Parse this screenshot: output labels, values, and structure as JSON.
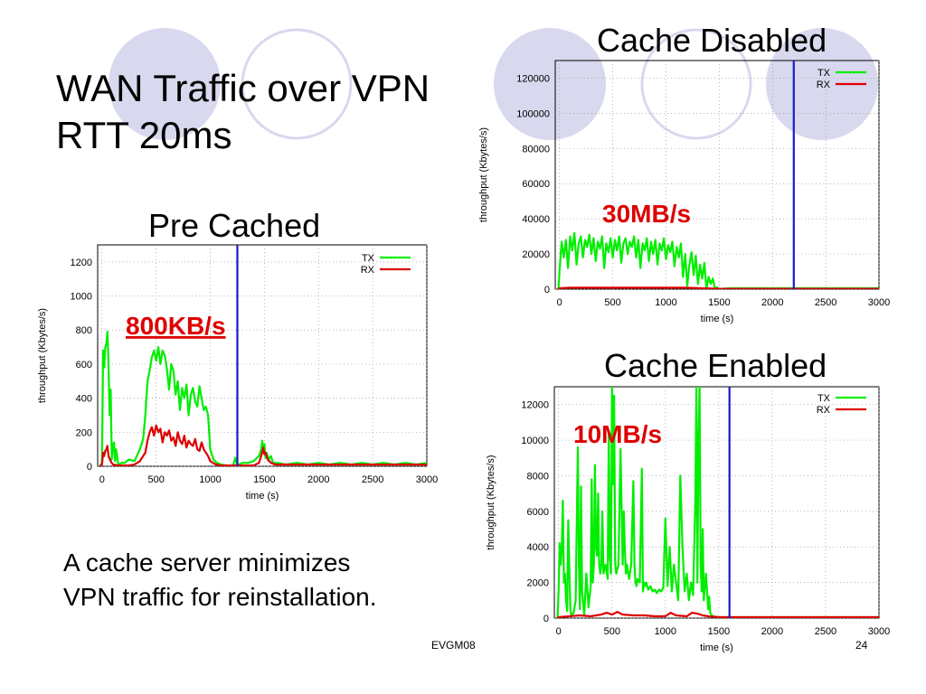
{
  "slide": {
    "title_line1": "WAN Traffic over VPN",
    "title_line2": "RTT 20ms",
    "body_line1": "A cache server minimizes",
    "body_line2": "VPN traffic for reinstallation.",
    "footer_left": "EVGM08",
    "page_number": "24"
  },
  "colors": {
    "tx": "#00ee00",
    "rx": "#dd0000",
    "vline": "#1a1acc",
    "annotation": "#dd0000",
    "circle_fill": "#d8d8ee",
    "circle_stroke": "#d8d8ee"
  },
  "chart_data": [
    {
      "id": "precached",
      "type": "line",
      "heading": "Pre Cached",
      "annotation": "800KB/s",
      "annotation_underline": true,
      "xlabel": "time (s)",
      "ylabel": "throughput (Kbytes/s)",
      "xlim": [
        -40,
        3000
      ],
      "ylim": [
        0,
        1300
      ],
      "xticks": [
        0,
        500,
        1000,
        1500,
        2000,
        2500,
        3000
      ],
      "yticks": [
        0,
        200,
        400,
        600,
        800,
        1000,
        1200
      ],
      "legend_position": "top-right",
      "vline_x": 1250,
      "series": [
        {
          "name": "TX",
          "x": [
            -20,
            0,
            10,
            20,
            30,
            40,
            50,
            60,
            70,
            80,
            90,
            100,
            110,
            120,
            130,
            150,
            180,
            210,
            250,
            300,
            350,
            380,
            400,
            420,
            440,
            460,
            480,
            500,
            520,
            540,
            560,
            580,
            600,
            620,
            640,
            660,
            680,
            700,
            720,
            740,
            760,
            780,
            800,
            820,
            840,
            860,
            880,
            900,
            920,
            940,
            960,
            980,
            1000,
            1030,
            1060,
            1100,
            1150,
            1200,
            1210,
            1230,
            1250,
            1260,
            1300,
            1350,
            1400,
            1450,
            1470,
            1480,
            1490,
            1500,
            1510,
            1520,
            1540,
            1560,
            1580,
            1600,
            1620,
            1700,
            1800,
            1900,
            2000,
            2100,
            2200,
            2300,
            2400,
            2500,
            2600,
            2700,
            2800,
            2900,
            3000
          ],
          "y": [
            0,
            20,
            680,
            580,
            700,
            720,
            790,
            600,
            300,
            450,
            40,
            120,
            140,
            30,
            100,
            10,
            20,
            20,
            40,
            30,
            100,
            160,
            300,
            500,
            560,
            640,
            680,
            620,
            700,
            600,
            680,
            650,
            570,
            450,
            600,
            560,
            420,
            500,
            330,
            460,
            400,
            480,
            300,
            420,
            460,
            380,
            350,
            470,
            400,
            330,
            350,
            300,
            100,
            40,
            20,
            10,
            5,
            5,
            5,
            50,
            5,
            10,
            20,
            20,
            30,
            60,
            100,
            150,
            80,
            130,
            50,
            80,
            40,
            60,
            20,
            20,
            20,
            10,
            20,
            10,
            20,
            10,
            20,
            10,
            20,
            10,
            20,
            10,
            20,
            10,
            20
          ]
        },
        {
          "name": "RX",
          "x": [
            -20,
            0,
            10,
            20,
            30,
            40,
            50,
            60,
            80,
            100,
            150,
            200,
            250,
            300,
            350,
            400,
            420,
            440,
            460,
            480,
            500,
            520,
            540,
            560,
            580,
            600,
            620,
            640,
            660,
            680,
            700,
            720,
            740,
            760,
            780,
            800,
            820,
            840,
            860,
            880,
            900,
            920,
            940,
            960,
            980,
            1000,
            1050,
            1100,
            1150,
            1200,
            1250,
            1300,
            1350,
            1400,
            1450,
            1470,
            1490,
            1500,
            1510,
            1530,
            1560,
            1600,
            1700,
            1800,
            1900,
            2000,
            2200,
            2400,
            2600,
            2800,
            3000
          ],
          "y": [
            0,
            10,
            80,
            60,
            90,
            100,
            120,
            60,
            30,
            10,
            5,
            5,
            5,
            10,
            30,
            80,
            150,
            200,
            230,
            180,
            240,
            200,
            220,
            140,
            200,
            180,
            210,
            150,
            170,
            120,
            200,
            150,
            130,
            180,
            110,
            150,
            130,
            120,
            160,
            100,
            90,
            140,
            100,
            80,
            60,
            30,
            10,
            5,
            5,
            5,
            5,
            5,
            5,
            5,
            20,
            60,
            110,
            70,
            80,
            40,
            20,
            10,
            10,
            10,
            10,
            10,
            10,
            10,
            10,
            10,
            10
          ]
        }
      ]
    },
    {
      "id": "disabled",
      "type": "line",
      "heading": "Cache Disabled",
      "annotation": "30MB/s",
      "annotation_underline": false,
      "xlabel": "time (s)",
      "ylabel": "throughput (Kbytes/s)",
      "xlim": [
        -40,
        3000
      ],
      "ylim": [
        0,
        130000
      ],
      "xticks": [
        0,
        500,
        1000,
        1500,
        2000,
        2500,
        3000
      ],
      "yticks": [
        0,
        20000,
        40000,
        60000,
        80000,
        100000,
        120000
      ],
      "legend_position": "top-right",
      "vline_x": 2200,
      "series": [
        {
          "name": "TX",
          "x": [
            -10,
            0,
            20,
            40,
            60,
            80,
            100,
            120,
            140,
            160,
            180,
            200,
            220,
            240,
            260,
            280,
            300,
            320,
            340,
            360,
            380,
            400,
            420,
            440,
            460,
            480,
            500,
            520,
            540,
            560,
            580,
            600,
            620,
            640,
            660,
            680,
            700,
            720,
            740,
            760,
            780,
            800,
            820,
            840,
            860,
            880,
            900,
            920,
            940,
            960,
            980,
            1000,
            1020,
            1040,
            1060,
            1080,
            1100,
            1120,
            1140,
            1160,
            1180,
            1200,
            1220,
            1240,
            1260,
            1280,
            1300,
            1320,
            1340,
            1360,
            1380,
            1400,
            1420,
            1440,
            1460,
            1480,
            1500,
            1550,
            1600,
            1700,
            1800,
            1900,
            2000,
            2100,
            2200,
            2300,
            2500,
            2700,
            3000
          ],
          "y": [
            0,
            10000,
            27000,
            18000,
            28000,
            12000,
            30000,
            22000,
            32000,
            14000,
            26000,
            30000,
            18000,
            28000,
            24000,
            31000,
            20000,
            29000,
            16000,
            27000,
            23000,
            30000,
            12000,
            26000,
            21000,
            29000,
            18000,
            28000,
            22000,
            30000,
            15000,
            26000,
            29000,
            20000,
            27000,
            24000,
            30000,
            18000,
            28000,
            12000,
            26000,
            22000,
            29000,
            16000,
            27000,
            20000,
            28000,
            14000,
            26000,
            22000,
            29000,
            17000,
            25000,
            21000,
            27000,
            13000,
            24000,
            18000,
            26000,
            7000,
            20000,
            2000,
            14000,
            21000,
            8000,
            19000,
            3000,
            14000,
            6000,
            15000,
            0,
            7000,
            3000,
            6000,
            500,
            1000,
            0,
            300,
            500,
            500,
            500,
            500,
            500,
            500,
            500,
            500,
            500,
            500,
            500
          ]
        },
        {
          "name": "RX",
          "x": [
            -10,
            0,
            100,
            200,
            400,
            600,
            800,
            1000,
            1200,
            1300,
            1400,
            1500,
            1600,
            2000,
            2500,
            3000
          ],
          "y": [
            0,
            500,
            800,
            800,
            800,
            800,
            800,
            800,
            800,
            600,
            400,
            200,
            200,
            200,
            200,
            200
          ]
        }
      ]
    },
    {
      "id": "enabled",
      "type": "line",
      "heading": "Cache Enabled",
      "annotation": "10MB/s",
      "annotation_underline": false,
      "xlabel": "time (s)",
      "ylabel": "throughput (Kbytes/s)",
      "xlim": [
        -40,
        3000
      ],
      "ylim": [
        0,
        13000
      ],
      "xticks": [
        0,
        500,
        1000,
        1500,
        2000,
        2500,
        3000
      ],
      "yticks": [
        0,
        2000,
        4000,
        6000,
        8000,
        10000,
        12000
      ],
      "legend_position": "top-right",
      "vline_x": 1600,
      "series": [
        {
          "name": "TX",
          "x": [
            -10,
            0,
            10,
            20,
            30,
            40,
            50,
            60,
            70,
            80,
            90,
            100,
            110,
            120,
            140,
            160,
            180,
            190,
            200,
            210,
            220,
            240,
            260,
            280,
            300,
            310,
            320,
            330,
            340,
            350,
            360,
            370,
            380,
            390,
            400,
            410,
            420,
            440,
            460,
            470,
            480,
            490,
            500,
            510,
            520,
            530,
            540,
            560,
            580,
            600,
            610,
            620,
            630,
            640,
            660,
            680,
            700,
            710,
            720,
            730,
            740,
            760,
            780,
            790,
            800,
            810,
            820,
            840,
            860,
            880,
            900,
            920,
            940,
            960,
            980,
            1000,
            1020,
            1040,
            1060,
            1080,
            1100,
            1120,
            1140,
            1160,
            1180,
            1200,
            1220,
            1240,
            1260,
            1280,
            1290,
            1300,
            1310,
            1320,
            1330,
            1340,
            1350,
            1360,
            1380,
            1400,
            1410,
            1420,
            1430,
            1440,
            1460,
            1480,
            1500,
            1520,
            1540,
            1560,
            1600,
            1700,
            1800,
            1900,
            2000,
            2200,
            2400,
            2600,
            2800,
            3000
          ],
          "y": [
            0,
            1500,
            4200,
            3000,
            4000,
            6600,
            2000,
            2500,
            1000,
            400,
            5500,
            3000,
            500,
            100,
            300,
            1000,
            9600,
            3000,
            500,
            7400,
            1500,
            200,
            2500,
            600,
            1800,
            7800,
            2000,
            3000,
            8600,
            4000,
            3500,
            7000,
            3000,
            2500,
            3000,
            6000,
            2500,
            3000,
            2200,
            10500,
            3500,
            2500,
            13000,
            7500,
            12500,
            3000,
            2500,
            3000,
            9500,
            3000,
            6000,
            4000,
            2500,
            3000,
            2200,
            3000,
            7700,
            3000,
            2000,
            1800,
            2200,
            2000,
            8400,
            1500,
            2000,
            1800,
            2000,
            1600,
            1800,
            1500,
            1600,
            1400,
            1600,
            1500,
            1700,
            5600,
            1800,
            4000,
            1500,
            3000,
            2000,
            1000,
            8000,
            4000,
            1500,
            2500,
            1000,
            2000,
            1300,
            6600,
            13000,
            2000,
            10000,
            13000,
            3000,
            1500,
            5000,
            1000,
            2500,
            500,
            1200,
            300,
            200,
            100,
            100,
            50,
            50,
            50,
            50,
            50,
            50,
            50,
            50,
            50,
            50,
            50,
            50,
            50,
            50,
            50
          ]
        },
        {
          "name": "RX",
          "x": [
            -10,
            0,
            100,
            200,
            300,
            400,
            450,
            500,
            550,
            600,
            700,
            800,
            900,
            1000,
            1050,
            1100,
            1200,
            1250,
            1300,
            1350,
            1400,
            1500,
            1600,
            2000,
            2500,
            3000
          ],
          "y": [
            0,
            50,
            100,
            150,
            100,
            200,
            300,
            200,
            350,
            200,
            150,
            150,
            100,
            100,
            300,
            150,
            100,
            300,
            250,
            150,
            100,
            50,
            50,
            50,
            50,
            50
          ]
        }
      ]
    }
  ]
}
